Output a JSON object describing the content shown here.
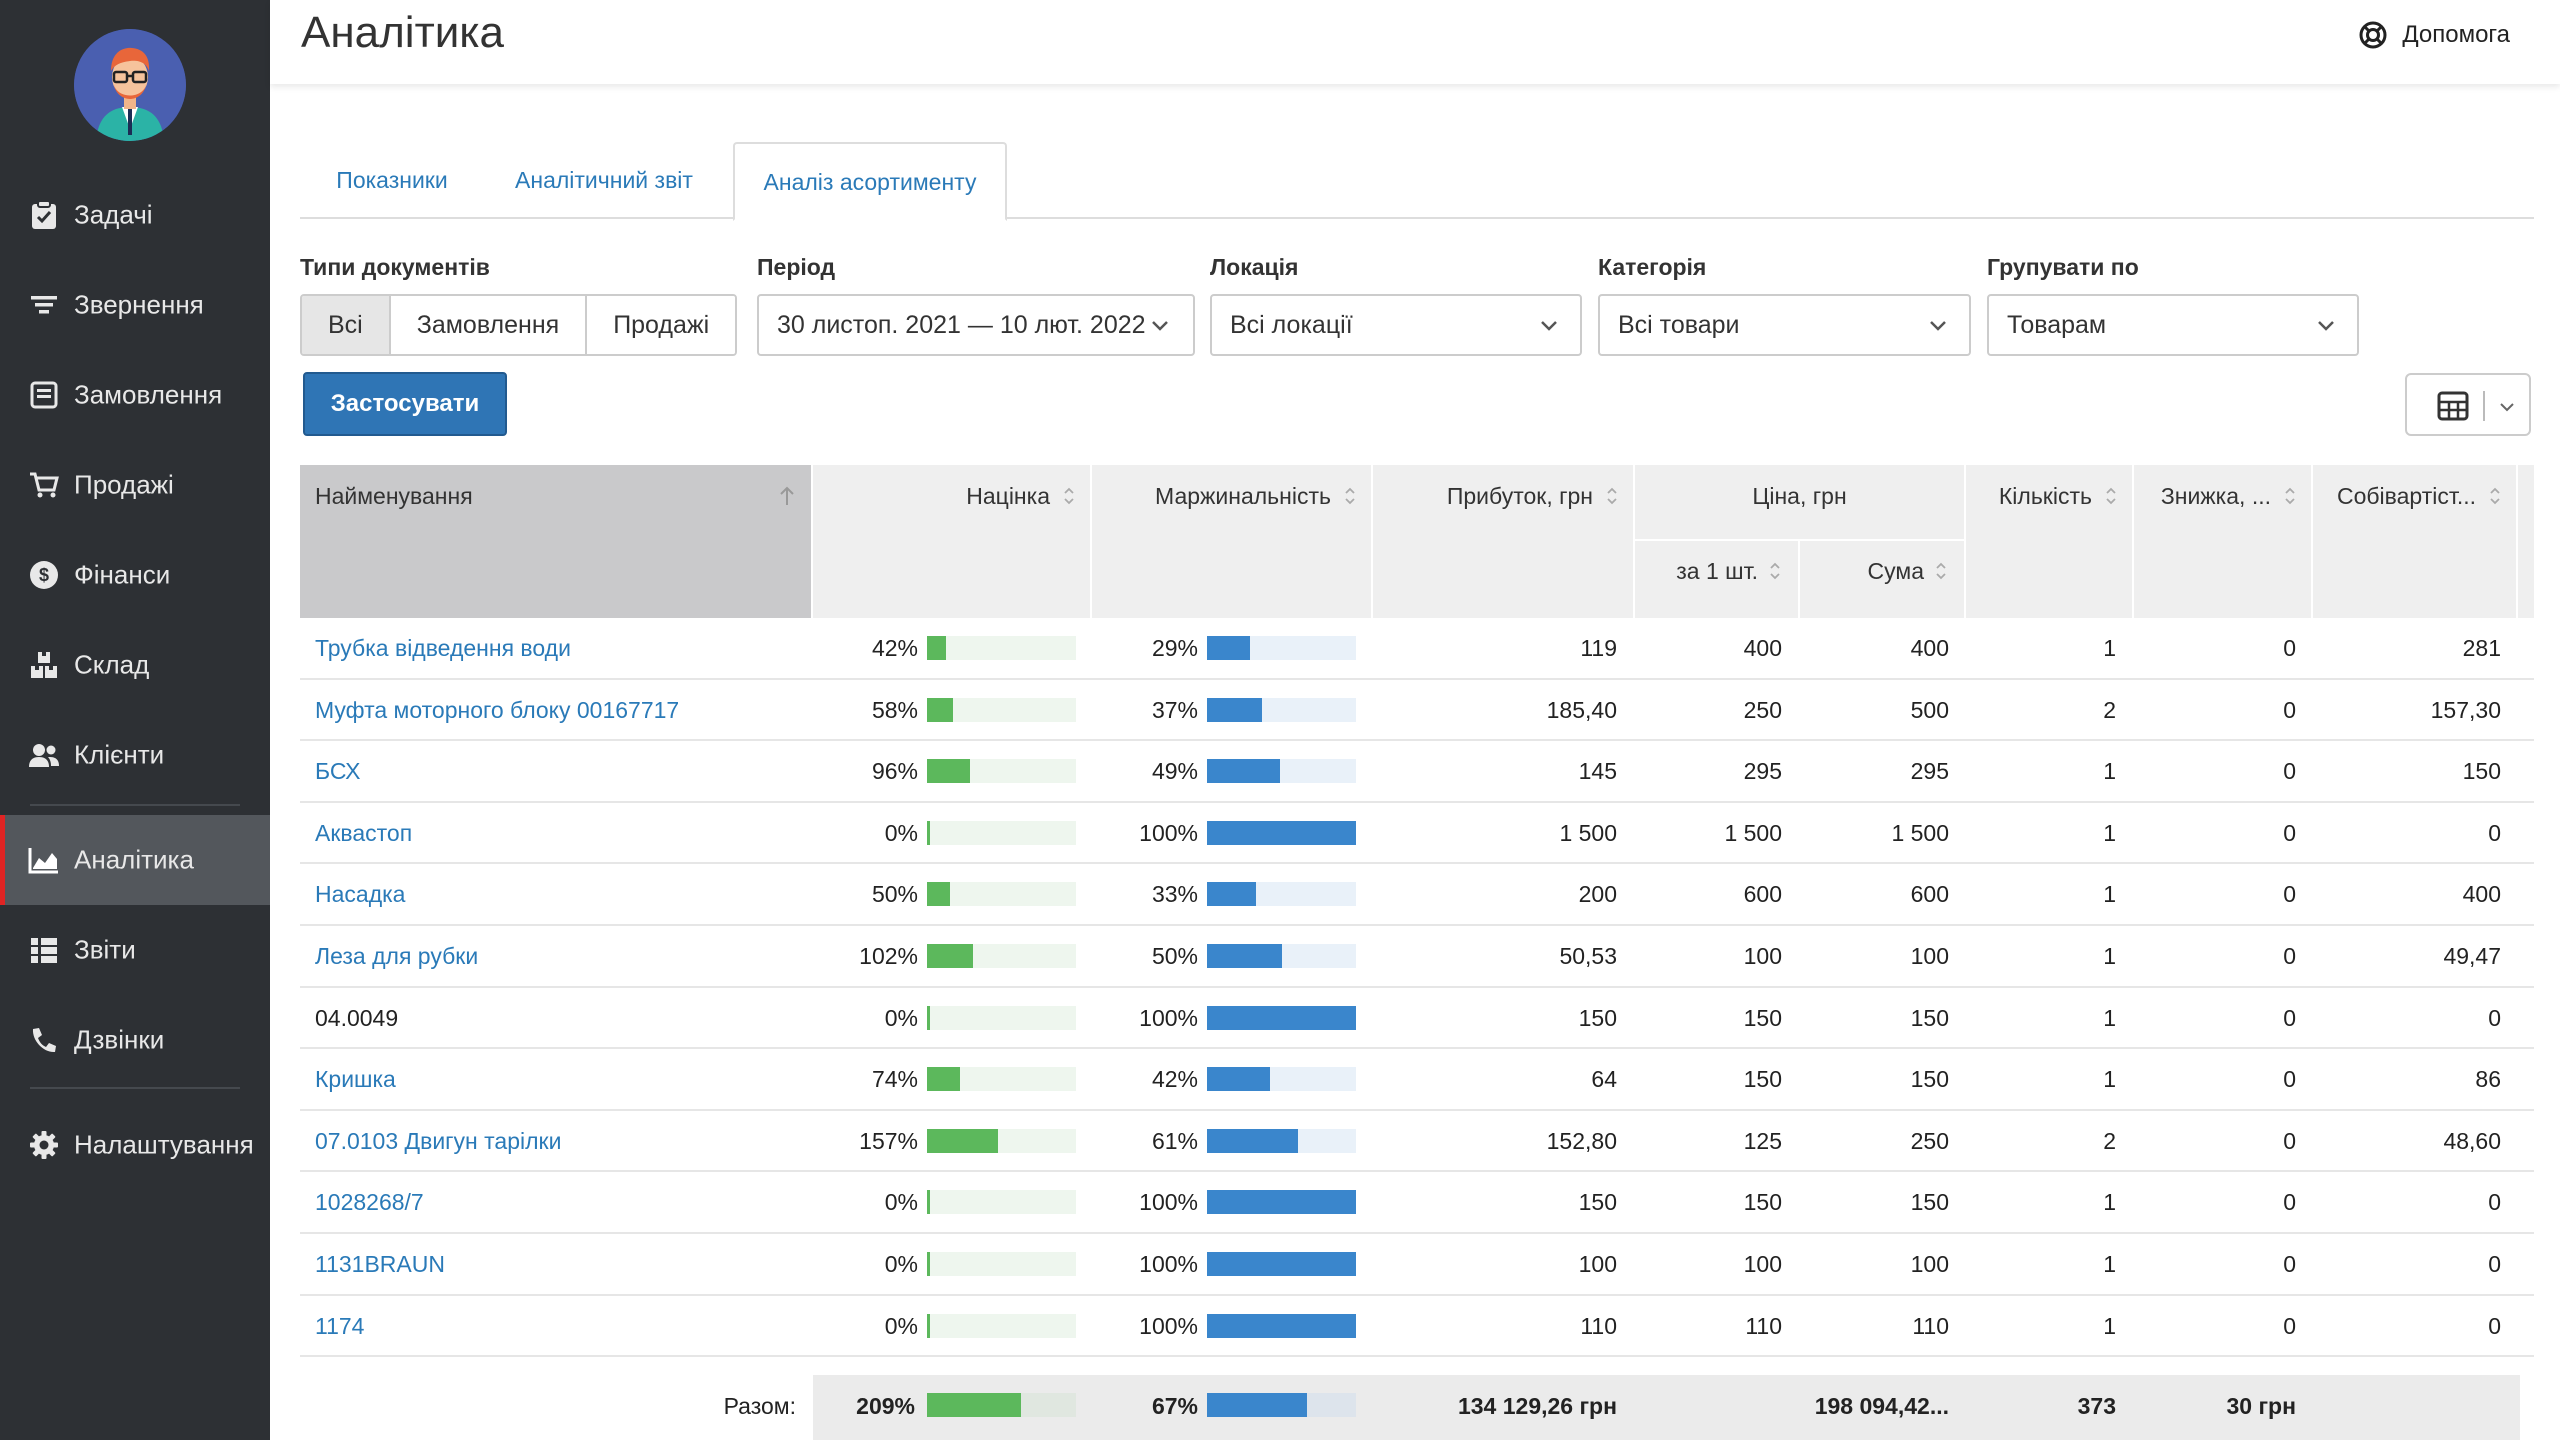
{
  "nav": {
    "items": [
      {
        "label": "Задачі",
        "icon": "clipboard-check-icon"
      },
      {
        "label": "Звернення",
        "icon": "filter-lines-icon"
      },
      {
        "label": "Замовлення",
        "icon": "order-icon"
      },
      {
        "label": "Продажі",
        "icon": "cart-icon"
      },
      {
        "label": "Фінанси",
        "icon": "dollar-circle-icon"
      },
      {
        "label": "Склад",
        "icon": "boxes-icon"
      },
      {
        "label": "Клієнти",
        "icon": "users-icon"
      },
      {
        "label": "Аналітика",
        "icon": "chart-area-icon",
        "active": true
      },
      {
        "label": "Звіти",
        "icon": "list-icon"
      },
      {
        "label": "Дзвінки",
        "icon": "phone-icon"
      },
      {
        "label": "Налаштування",
        "icon": "gear-icon"
      }
    ]
  },
  "header": {
    "title": "Аналітика",
    "help_label": "Допомога"
  },
  "tabs": [
    {
      "label": "Показники"
    },
    {
      "label": "Аналітичний звіт"
    },
    {
      "label": "Аналіз асортименту",
      "active": true
    }
  ],
  "filters": {
    "doc_types_label": "Типи документів",
    "doc_types": [
      "Всі",
      "Замовлення",
      "Продажі"
    ],
    "doc_types_selected": "Всі",
    "period_label": "Період",
    "period_value": "30 листоп. 2021 — 10 лют. 2022",
    "location_label": "Локація",
    "location_value": "Всі локації",
    "category_label": "Категорія",
    "category_value": "Всі товари",
    "group_label": "Групувати по",
    "group_value": "Товарам",
    "apply_label": "Застосувати"
  },
  "table": {
    "columns": {
      "name": "Найменування",
      "markup": "Націнка",
      "margin": "Маржинальність",
      "profit": "Прибуток, грн",
      "price": "Ціна, грн",
      "per_unit": "за 1 шт.",
      "sum": "Сума",
      "qty": "Кількість",
      "discount": "Знижка, ...",
      "cost": "Собівартіст..."
    },
    "rows": [
      {
        "name": "Трубка відведення води",
        "link": true,
        "markup": "42%",
        "markup_v": 42,
        "margin": "29%",
        "margin_v": 29,
        "profit": "119",
        "per_unit": "400",
        "sum": "400",
        "qty": "1",
        "discount": "0",
        "cost": "281"
      },
      {
        "name": "Муфта моторного блоку 00167717",
        "link": true,
        "markup": "58%",
        "markup_v": 58,
        "margin": "37%",
        "margin_v": 37,
        "profit": "185,40",
        "per_unit": "250",
        "sum": "500",
        "qty": "2",
        "discount": "0",
        "cost": "157,30"
      },
      {
        "name": "БСХ",
        "link": true,
        "markup": "96%",
        "markup_v": 96,
        "margin": "49%",
        "margin_v": 49,
        "profit": "145",
        "per_unit": "295",
        "sum": "295",
        "qty": "1",
        "discount": "0",
        "cost": "150"
      },
      {
        "name": "Аквастоп",
        "link": true,
        "markup": "0%",
        "markup_v": 0,
        "margin": "100%",
        "margin_v": 100,
        "profit": "1 500",
        "per_unit": "1 500",
        "sum": "1 500",
        "qty": "1",
        "discount": "0",
        "cost": "0"
      },
      {
        "name": "Насадка",
        "link": true,
        "markup": "50%",
        "markup_v": 50,
        "margin": "33%",
        "margin_v": 33,
        "profit": "200",
        "per_unit": "600",
        "sum": "600",
        "qty": "1",
        "discount": "0",
        "cost": "400"
      },
      {
        "name": "Леза для рубки",
        "link": true,
        "markup": "102%",
        "markup_v": 102,
        "margin": "50%",
        "margin_v": 50,
        "profit": "50,53",
        "per_unit": "100",
        "sum": "100",
        "qty": "1",
        "discount": "0",
        "cost": "49,47"
      },
      {
        "name": "04.0049",
        "link": false,
        "markup": "0%",
        "markup_v": 0,
        "margin": "100%",
        "margin_v": 100,
        "profit": "150",
        "per_unit": "150",
        "sum": "150",
        "qty": "1",
        "discount": "0",
        "cost": "0"
      },
      {
        "name": "Кришка",
        "link": true,
        "markup": "74%",
        "markup_v": 74,
        "margin": "42%",
        "margin_v": 42,
        "profit": "64",
        "per_unit": "150",
        "sum": "150",
        "qty": "1",
        "discount": "0",
        "cost": "86"
      },
      {
        "name": "07.0103 Двигун тарілки",
        "link": true,
        "markup": "157%",
        "markup_v": 157,
        "margin": "61%",
        "margin_v": 61,
        "profit": "152,80",
        "per_unit": "125",
        "sum": "250",
        "qty": "2",
        "discount": "0",
        "cost": "48,60"
      },
      {
        "name": "1028268/7",
        "link": true,
        "markup": "0%",
        "markup_v": 0,
        "margin": "100%",
        "margin_v": 100,
        "profit": "150",
        "per_unit": "150",
        "sum": "150",
        "qty": "1",
        "discount": "0",
        "cost": "0"
      },
      {
        "name": "1131BRAUN",
        "link": true,
        "markup": "0%",
        "markup_v": 0,
        "margin": "100%",
        "margin_v": 100,
        "profit": "100",
        "per_unit": "100",
        "sum": "100",
        "qty": "1",
        "discount": "0",
        "cost": "0"
      },
      {
        "name": "1174",
        "link": true,
        "markup": "0%",
        "markup_v": 0,
        "margin": "100%",
        "margin_v": 100,
        "profit": "110",
        "per_unit": "110",
        "sum": "110",
        "qty": "1",
        "discount": "0",
        "cost": "0"
      }
    ],
    "footer": {
      "label": "Разом:",
      "markup": "209%",
      "markup_v": 209,
      "margin": "67%",
      "margin_v": 67,
      "profit": "134 129,26 грн",
      "sum": "198 094,42...",
      "qty": "373",
      "discount": "30 грн"
    }
  },
  "colors": {
    "markup_bar": "#5cb85c",
    "margin_bar": "#3a86cc",
    "accent": "#2f75b5",
    "link": "#2a7ab8"
  }
}
